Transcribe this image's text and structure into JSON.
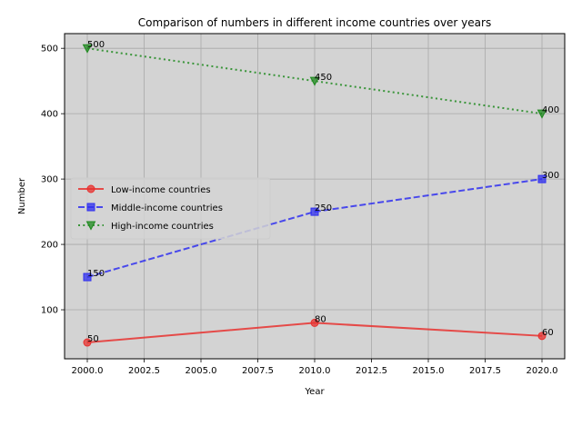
{
  "chart_data": {
    "type": "line",
    "title": "Comparison of numbers in different income countries over years",
    "xlabel": "Year",
    "ylabel": "Number",
    "x": [
      2000,
      2010,
      2020
    ],
    "xlim": [
      1999,
      2021
    ],
    "ylim": [
      25,
      522.5
    ],
    "xticks": [
      2000,
      2002.5,
      2005,
      2007.5,
      2010,
      2012.5,
      2015,
      2017.5,
      2020
    ],
    "xtick_labels": [
      "2000.0",
      "2002.5",
      "2005.0",
      "2007.5",
      "2010.0",
      "2012.5",
      "2015.0",
      "2017.5",
      "2020.0"
    ],
    "yticks": [
      100,
      200,
      300,
      400,
      500
    ],
    "ytick_labels": [
      "100",
      "200",
      "300",
      "400",
      "500"
    ],
    "grid": true,
    "legend_position": "center-left",
    "background": "#d3d3d3",
    "series": [
      {
        "name": "Low-income countries",
        "values": [
          50,
          80,
          60
        ],
        "labels": [
          "50",
          "80",
          "60"
        ],
        "color": "#e8312f",
        "dash": "solid",
        "marker": "circle"
      },
      {
        "name": "Middle-income countries",
        "values": [
          150,
          250,
          300
        ],
        "labels": [
          "150",
          "250",
          "300"
        ],
        "color": "#2f2ff0",
        "dash": "dashed",
        "marker": "square"
      },
      {
        "name": "High-income countries",
        "values": [
          500,
          450,
          400
        ],
        "labels": [
          "500",
          "450",
          "400"
        ],
        "color": "#1f8a1f",
        "dash": "dotted",
        "marker": "triangle-down"
      }
    ]
  }
}
